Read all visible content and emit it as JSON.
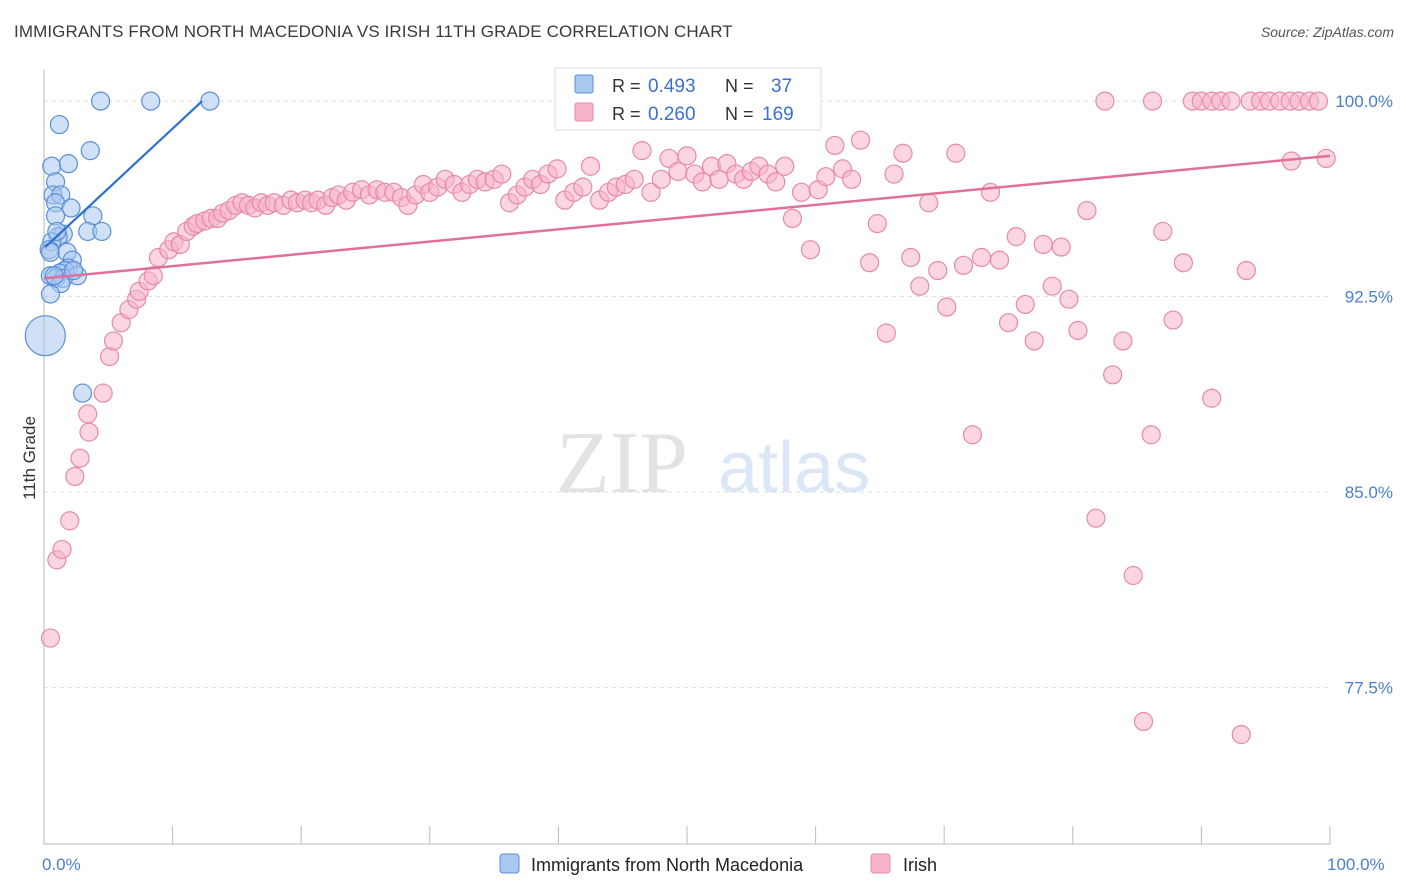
{
  "title": "IMMIGRANTS FROM NORTH MACEDONIA VS IRISH 11TH GRADE CORRELATION CHART",
  "source": "Source: ZipAtlas.com",
  "watermark": {
    "zip": "ZIP",
    "atlas": "atlas"
  },
  "colors": {
    "blue_fill": "#a9c8f0",
    "blue_stroke": "#5a8fd8",
    "blue_line": "#2f6fd0",
    "pink_fill": "#f7b5c9",
    "pink_stroke": "#e68aa8",
    "pink_line": "#e0709a",
    "grid": "#dddddd",
    "tick_text": "#4a7fd0"
  },
  "legend_top": {
    "rows": [
      {
        "r_label": "R =",
        "r_value": "0.493",
        "n_label": "N =",
        "n_value": "37"
      },
      {
        "r_label": "R =",
        "r_value": "0.260",
        "n_label": "N =",
        "n_value": "169"
      }
    ]
  },
  "chart_data": {
    "type": "scatter",
    "title": "IMMIGRANTS FROM NORTH MACEDONIA VS IRISH 11TH GRADE CORRELATION CHART",
    "xlabel": "",
    "ylabel": "11th Grade",
    "xlim": [
      0,
      100
    ],
    "ylim": [
      71.5,
      101.5
    ],
    "x_tick_labels": [
      "0.0%",
      "100.0%"
    ],
    "y_ticks": [
      77.5,
      85.0,
      92.5,
      100.0
    ],
    "y_tick_labels": [
      "77.5%",
      "85.0%",
      "92.5%",
      "100.0%"
    ],
    "legend": [
      "Immigrants from North Macedonia",
      "Irish"
    ],
    "series": [
      {
        "name": "Immigrants from North Macedonia",
        "color": "#a9c8f0",
        "trend": {
          "x": [
            0.1,
            12.3
          ],
          "y": [
            94.4,
            100.0
          ]
        },
        "points": [
          [
            4.4,
            100
          ],
          [
            8.3,
            100
          ],
          [
            12.9,
            100
          ],
          [
            1.2,
            99.1
          ],
          [
            3.6,
            98.1
          ],
          [
            0.6,
            97.5
          ],
          [
            1.9,
            97.6
          ],
          [
            0.9,
            96.9
          ],
          [
            0.7,
            96.4
          ],
          [
            1.3,
            96.4
          ],
          [
            0.9,
            96.1
          ],
          [
            2.1,
            95.9
          ],
          [
            3.8,
            95.6
          ],
          [
            0.9,
            95.6
          ],
          [
            3.4,
            95.0
          ],
          [
            4.5,
            95.0
          ],
          [
            1.5,
            94.9
          ],
          [
            1.1,
            94.8
          ],
          [
            0.6,
            94.6
          ],
          [
            0.4,
            94.3
          ],
          [
            0.5,
            94.2
          ],
          [
            1.8,
            94.2
          ],
          [
            2.2,
            93.9
          ],
          [
            1.9,
            93.6
          ],
          [
            1.6,
            93.5
          ],
          [
            1.2,
            93.4
          ],
          [
            0.5,
            93.3
          ],
          [
            0.9,
            93.2
          ],
          [
            2.6,
            93.3
          ],
          [
            1.5,
            93.2
          ],
          [
            1.3,
            93.0
          ],
          [
            0.5,
            92.6
          ],
          [
            0.1,
            91.0
          ],
          [
            3.0,
            88.8
          ],
          [
            2.3,
            93.5
          ],
          [
            0.8,
            93.3
          ],
          [
            1.0,
            95.0
          ]
        ],
        "sizes": [
          9,
          9,
          9,
          9,
          9,
          9,
          9,
          9,
          9,
          9,
          9,
          9,
          9,
          9,
          9,
          9,
          9,
          9,
          9,
          9,
          9,
          9,
          9,
          9,
          9,
          9,
          9,
          9,
          9,
          9,
          9,
          9,
          20,
          9,
          9,
          9,
          9
        ]
      },
      {
        "name": "Irish",
        "color": "#f7b5c9",
        "trend": {
          "x": [
            0.0,
            100.0
          ],
          "y": [
            93.2,
            97.9
          ]
        },
        "points": [
          [
            0.5,
            79.4
          ],
          [
            1.0,
            82.4
          ],
          [
            1.4,
            82.8
          ],
          [
            2.0,
            83.9
          ],
          [
            2.4,
            85.6
          ],
          [
            2.8,
            86.3
          ],
          [
            3.5,
            87.3
          ],
          [
            3.4,
            88.0
          ],
          [
            4.6,
            88.8
          ],
          [
            5.1,
            90.2
          ],
          [
            5.4,
            90.8
          ],
          [
            6.0,
            91.5
          ],
          [
            6.6,
            92.0
          ],
          [
            7.2,
            92.4
          ],
          [
            7.4,
            92.7
          ],
          [
            8.1,
            93.1
          ],
          [
            8.5,
            93.3
          ],
          [
            8.9,
            94.0
          ],
          [
            9.7,
            94.3
          ],
          [
            10.1,
            94.6
          ],
          [
            10.6,
            94.5
          ],
          [
            11.1,
            95.0
          ],
          [
            11.6,
            95.2
          ],
          [
            11.9,
            95.3
          ],
          [
            12.5,
            95.4
          ],
          [
            13.0,
            95.5
          ],
          [
            13.5,
            95.5
          ],
          [
            13.9,
            95.7
          ],
          [
            14.4,
            95.8
          ],
          [
            14.9,
            96.0
          ],
          [
            15.4,
            96.1
          ],
          [
            15.9,
            96.0
          ],
          [
            16.4,
            95.9
          ],
          [
            16.9,
            96.1
          ],
          [
            17.4,
            96.0
          ],
          [
            17.9,
            96.1
          ],
          [
            18.6,
            96.0
          ],
          [
            19.2,
            96.2
          ],
          [
            19.7,
            96.1
          ],
          [
            20.3,
            96.2
          ],
          [
            20.8,
            96.1
          ],
          [
            21.3,
            96.2
          ],
          [
            21.9,
            96.0
          ],
          [
            22.4,
            96.3
          ],
          [
            22.9,
            96.4
          ],
          [
            23.5,
            96.2
          ],
          [
            24.0,
            96.5
          ],
          [
            24.7,
            96.6
          ],
          [
            25.3,
            96.4
          ],
          [
            25.9,
            96.6
          ],
          [
            26.5,
            96.5
          ],
          [
            27.2,
            96.5
          ],
          [
            27.8,
            96.3
          ],
          [
            28.3,
            96.0
          ],
          [
            28.9,
            96.4
          ],
          [
            29.5,
            96.8
          ],
          [
            30.0,
            96.5
          ],
          [
            30.6,
            96.7
          ],
          [
            31.2,
            97.0
          ],
          [
            31.9,
            96.8
          ],
          [
            32.5,
            96.5
          ],
          [
            33.1,
            96.8
          ],
          [
            33.7,
            97.0
          ],
          [
            34.3,
            96.9
          ],
          [
            35.0,
            97.0
          ],
          [
            35.6,
            97.2
          ],
          [
            36.2,
            96.1
          ],
          [
            36.8,
            96.4
          ],
          [
            37.4,
            96.7
          ],
          [
            38.0,
            97.0
          ],
          [
            38.6,
            96.8
          ],
          [
            39.2,
            97.2
          ],
          [
            39.9,
            97.4
          ],
          [
            40.5,
            96.2
          ],
          [
            41.2,
            96.5
          ],
          [
            41.9,
            96.7
          ],
          [
            42.5,
            97.5
          ],
          [
            43.2,
            96.2
          ],
          [
            43.9,
            96.5
          ],
          [
            44.5,
            96.7
          ],
          [
            45.2,
            96.8
          ],
          [
            45.9,
            97.0
          ],
          [
            46.5,
            98.1
          ],
          [
            47.2,
            96.5
          ],
          [
            48.0,
            97.0
          ],
          [
            48.6,
            97.8
          ],
          [
            49.3,
            97.3
          ],
          [
            50.0,
            97.9
          ],
          [
            50.6,
            97.2
          ],
          [
            51.2,
            96.9
          ],
          [
            51.9,
            97.5
          ],
          [
            52.5,
            97.0
          ],
          [
            53.1,
            97.6
          ],
          [
            53.8,
            97.2
          ],
          [
            54.4,
            97.0
          ],
          [
            55.0,
            97.3
          ],
          [
            55.6,
            97.5
          ],
          [
            56.3,
            97.2
          ],
          [
            56.9,
            96.9
          ],
          [
            57.6,
            97.5
          ],
          [
            58.2,
            95.5
          ],
          [
            58.9,
            96.5
          ],
          [
            59.6,
            94.3
          ],
          [
            60.2,
            96.6
          ],
          [
            60.8,
            97.1
          ],
          [
            61.5,
            98.3
          ],
          [
            62.1,
            97.4
          ],
          [
            62.8,
            97.0
          ],
          [
            63.5,
            98.5
          ],
          [
            64.2,
            93.8
          ],
          [
            64.8,
            95.3
          ],
          [
            65.5,
            91.1
          ],
          [
            66.1,
            97.2
          ],
          [
            66.8,
            98.0
          ],
          [
            67.4,
            94.0
          ],
          [
            68.1,
            92.9
          ],
          [
            68.8,
            96.1
          ],
          [
            69.5,
            93.5
          ],
          [
            70.2,
            92.1
          ],
          [
            70.9,
            98.0
          ],
          [
            71.5,
            93.7
          ],
          [
            72.2,
            87.2
          ],
          [
            72.9,
            94.0
          ],
          [
            73.6,
            96.5
          ],
          [
            74.3,
            93.9
          ],
          [
            75.0,
            91.5
          ],
          [
            75.6,
            94.8
          ],
          [
            76.3,
            92.2
          ],
          [
            77.0,
            90.8
          ],
          [
            77.7,
            94.5
          ],
          [
            78.4,
            92.9
          ],
          [
            79.1,
            94.4
          ],
          [
            79.7,
            92.4
          ],
          [
            80.4,
            91.2
          ],
          [
            81.1,
            95.8
          ],
          [
            81.8,
            84.0
          ],
          [
            82.5,
            100
          ],
          [
            83.1,
            89.5
          ],
          [
            83.9,
            90.8
          ],
          [
            84.7,
            81.8
          ],
          [
            85.5,
            76.2
          ],
          [
            86.2,
            100
          ],
          [
            87.0,
            95.0
          ],
          [
            87.8,
            91.6
          ],
          [
            88.6,
            93.8
          ],
          [
            89.3,
            100
          ],
          [
            90.0,
            100
          ],
          [
            90.8,
            100
          ],
          [
            91.5,
            100
          ],
          [
            92.3,
            100
          ],
          [
            93.1,
            75.7
          ],
          [
            93.8,
            100
          ],
          [
            94.6,
            100
          ],
          [
            95.3,
            100
          ],
          [
            96.1,
            100
          ],
          [
            96.9,
            100
          ],
          [
            97.6,
            100
          ],
          [
            98.4,
            100
          ],
          [
            99.1,
            100
          ],
          [
            99.7,
            97.8
          ],
          [
            97.0,
            97.7
          ],
          [
            86.1,
            87.2
          ],
          [
            90.8,
            88.6
          ],
          [
            93.5,
            93.5
          ]
        ],
        "sizes": [
          9,
          9,
          9,
          9,
          9,
          9,
          9,
          9,
          9,
          9,
          9,
          9,
          9,
          9,
          9,
          9,
          9,
          9,
          9,
          9,
          9,
          9,
          9,
          9,
          9,
          9,
          9,
          9,
          9,
          9,
          9,
          9,
          9,
          9,
          9,
          9,
          9,
          9,
          9,
          9,
          9,
          9,
          9,
          9,
          9,
          9,
          9,
          9,
          9,
          9,
          9,
          9,
          9,
          9,
          9,
          9,
          9,
          9,
          9,
          9,
          9,
          9,
          9,
          9,
          9,
          9,
          9,
          9,
          9,
          9,
          9,
          9,
          9,
          9,
          9,
          9,
          9,
          9,
          9,
          9,
          9,
          9,
          9,
          9,
          9,
          9,
          9,
          9,
          9,
          9,
          9,
          9,
          9,
          9,
          9,
          9,
          9,
          9,
          9,
          9,
          9,
          9,
          9,
          9,
          9,
          9,
          9,
          9,
          9,
          9,
          9,
          9,
          9,
          9,
          9,
          9,
          9,
          9,
          9,
          9,
          9,
          9,
          9,
          9,
          9,
          9,
          9,
          9,
          9,
          9,
          9,
          9,
          9,
          9,
          9,
          9,
          9,
          9,
          9,
          9,
          9,
          9,
          9,
          9,
          9,
          9,
          9,
          9,
          9,
          9,
          9,
          9,
          9,
          9,
          9,
          9,
          9,
          9,
          9,
          9,
          9,
          9,
          9,
          9,
          9,
          9,
          9,
          9,
          9
        ]
      }
    ]
  }
}
